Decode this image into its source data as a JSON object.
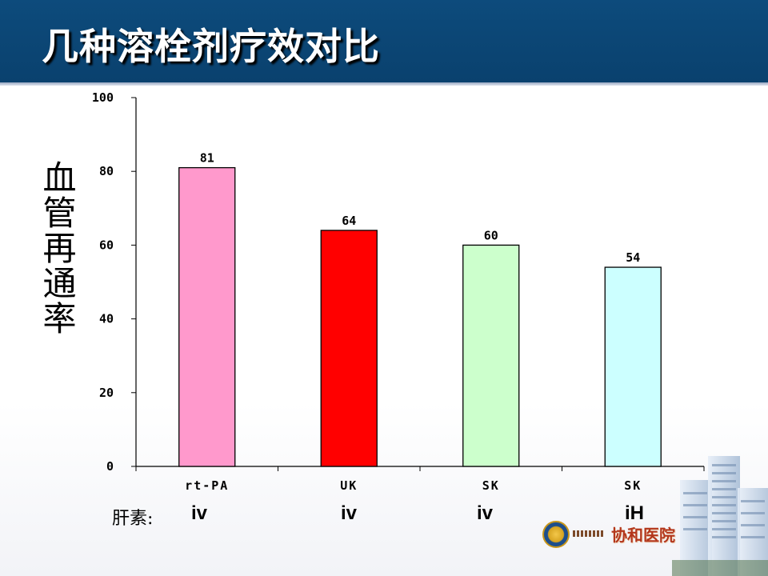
{
  "slide": {
    "title": "几种溶栓剂疗效对比"
  },
  "chart_data": {
    "type": "bar",
    "ylabel": "血管再通率",
    "ylim": [
      0,
      100
    ],
    "yticks": [
      0,
      20,
      40,
      60,
      80,
      100
    ],
    "categories": [
      "rt-PA",
      "UK",
      "SK",
      "SK"
    ],
    "values": [
      81,
      64,
      60,
      54
    ],
    "colors": [
      "#ff99cc",
      "#ff0000",
      "#ccffcc",
      "#ccffff"
    ],
    "legend": "none",
    "grid": false
  },
  "heparin": {
    "prefix": "肝素:",
    "values": [
      "iv",
      "iv",
      "iv",
      "iH"
    ]
  },
  "logo": {
    "text": "协和医院"
  }
}
